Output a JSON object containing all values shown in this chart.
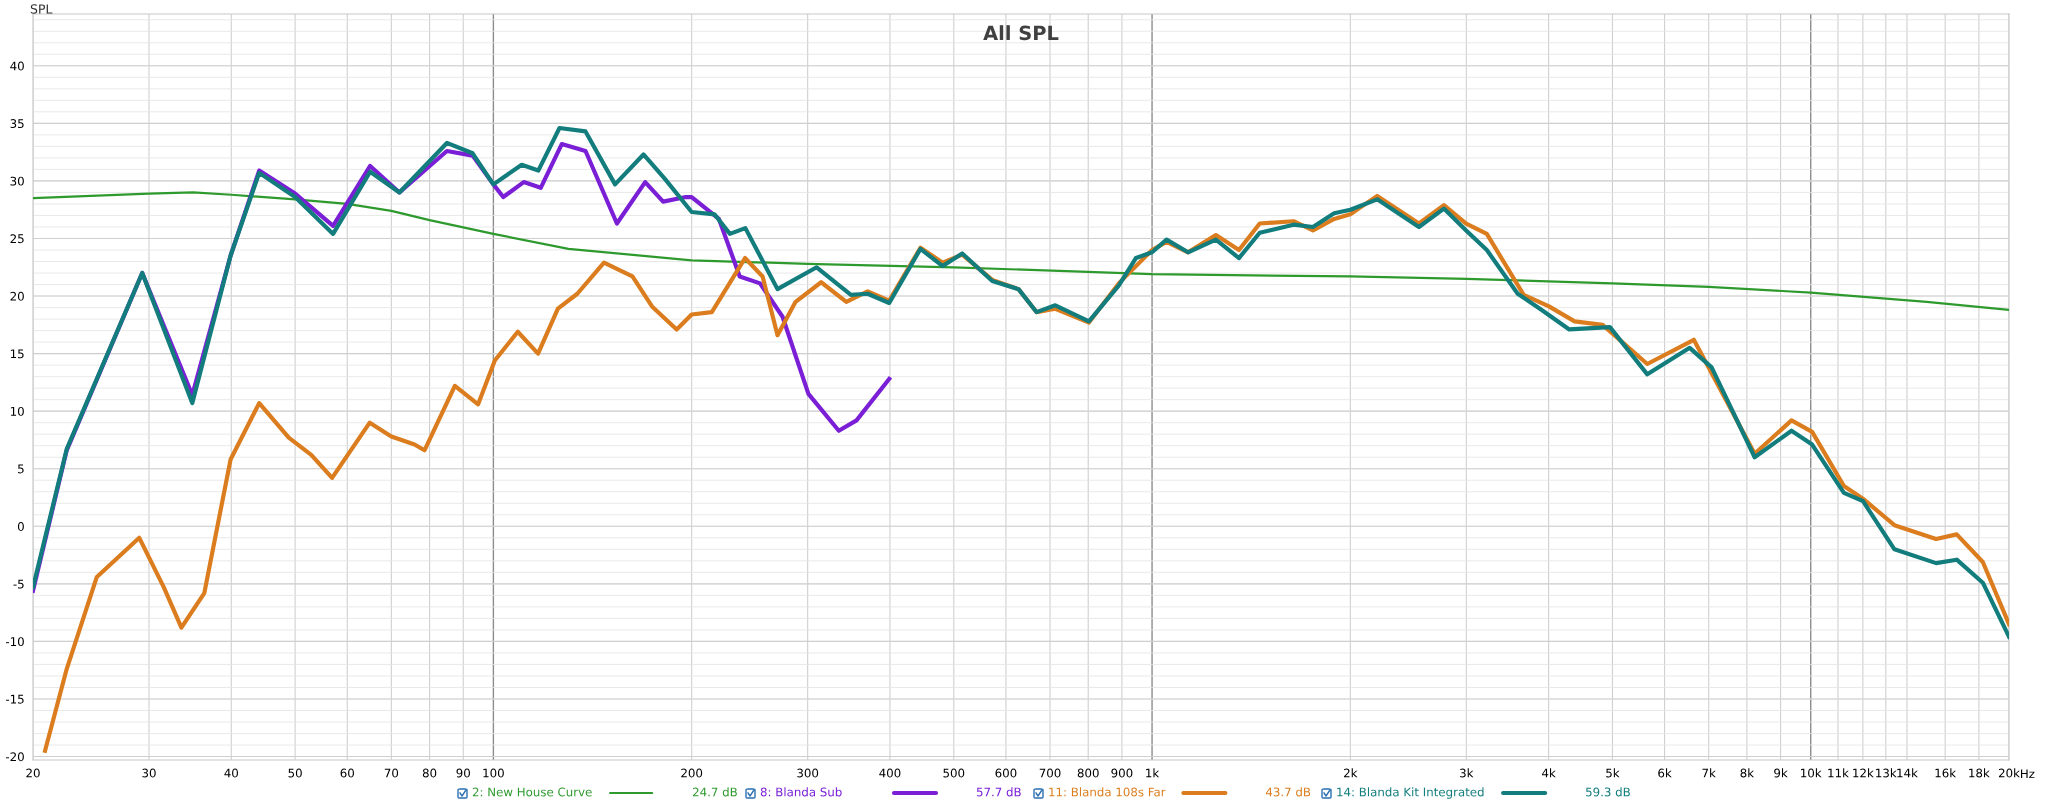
{
  "chart_data": {
    "type": "line",
    "title": "All SPL",
    "ylabel": "SPL",
    "log": "x",
    "grid": true,
    "legend": "bottom",
    "line_style": "solid",
    "marker": "none",
    "xlim": [
      20,
      20000
    ],
    "ylim": [
      -20.3,
      44.5
    ],
    "xticks": [
      20,
      30,
      40,
      50,
      60,
      70,
      80,
      90,
      100,
      200,
      300,
      400,
      500,
      600,
      700,
      800,
      900,
      {
        "value": 1000,
        "label": "1k"
      },
      {
        "value": 2000,
        "label": "2k"
      },
      {
        "value": 3000,
        "label": "3k"
      },
      {
        "value": 4000,
        "label": "4k"
      },
      {
        "value": 5000,
        "label": "5k"
      },
      {
        "value": 6000,
        "label": "6k"
      },
      {
        "value": 7000,
        "label": "7k"
      },
      {
        "value": 8000,
        "label": "8k"
      },
      {
        "value": 9000,
        "label": "9k"
      },
      {
        "value": 10000,
        "label": "10k"
      },
      {
        "value": 11000,
        "label": "11k"
      },
      {
        "value": 12000,
        "label": "12k"
      },
      {
        "value": 13000,
        "label": "13k"
      },
      {
        "value": 14000,
        "label": "14k"
      },
      {
        "value": 16000,
        "label": "16k"
      },
      {
        "value": 18000,
        "label": "18k"
      },
      {
        "value": 20000,
        "label": "20k"
      }
    ],
    "xlabel": "Hz",
    "yticks": [
      -20,
      -15,
      -10,
      -5,
      0,
      5,
      10,
      15,
      20,
      25,
      30,
      35,
      40
    ],
    "annotations": [
      "24.7 dB",
      "57.7 dB",
      "43.7 dB",
      "59.3 dB"
    ],
    "series": [
      {
        "name": "2: New House Curve",
        "color": "#2e9a2e",
        "x": [
          20,
          30,
          35,
          40,
          50,
          60,
          70,
          80,
          100,
          130,
          200,
          300,
          500,
          1000,
          2000,
          3000,
          5000,
          7000,
          10000,
          15000,
          20000
        ],
        "values": [
          28.5,
          28.9,
          29.0,
          28.8,
          28.4,
          28.0,
          27.4,
          26.6,
          25.4,
          24.1,
          23.1,
          22.8,
          22.5,
          21.9,
          21.7,
          21.5,
          21.1,
          20.8,
          20.3,
          19.5,
          18.8
        ]
      },
      {
        "name": "8: Blanda Sub",
        "color": "#7a1fd6",
        "x": [
          20,
          22.5,
          29.3,
          34.9,
          39.9,
          44.1,
          50,
          57.1,
          65,
          72,
          85,
          93,
          100,
          103.5,
          111.2,
          118,
          127,
          138,
          154,
          170,
          181,
          196,
          200,
          220,
          236.6,
          254,
          274.8,
          300.8,
          334.5,
          355.9,
          399
        ],
        "values": [
          -5.6,
          6.6,
          22.0,
          11.4,
          23.5,
          30.9,
          28.9,
          26.1,
          31.3,
          29.0,
          32.6,
          32.2,
          29.7,
          28.6,
          29.9,
          29.4,
          33.2,
          32.6,
          26.3,
          29.9,
          28.2,
          28.6,
          28.6,
          26.7,
          21.7,
          21.1,
          18.2,
          11.5,
          8.3,
          9.2,
          12.8
        ]
      },
      {
        "name": "11: Blanda 108s Far",
        "color": "#db7d1e",
        "x": [
          20.86,
          22.5,
          25.0,
          29.0,
          31.6,
          33.6,
          36.4,
          39.9,
          44.1,
          48.9,
          52.9,
          56.9,
          64.9,
          70.0,
          75.9,
          78.6,
          87.4,
          94.8,
          100.5,
          108.9,
          116.9,
          125.3,
          134.1,
          147.2,
          162.6,
          174.1,
          189.8,
          200,
          214.6,
          241,
          256.3,
          270,
          287.6,
          314.5,
          343.4,
          370,
          399,
          445,
          481,
          515,
          572,
          627,
          668,
          713,
          802,
          890,
          1000,
          1052,
          1134,
          1250,
          1355,
          1457,
          1640,
          1755,
          1890,
          2000,
          2197,
          2542,
          2774,
          2998,
          3223,
          3666,
          4005,
          4380,
          4830,
          5648,
          6645,
          8220,
          9350,
          10050,
          11230,
          12000,
          13400,
          15500,
          16660,
          18250,
          20000
        ],
        "values": [
          -19.5,
          -12.4,
          -4.4,
          -1.0,
          -5.3,
          -8.8,
          -5.8,
          5.8,
          10.7,
          7.7,
          6.2,
          4.2,
          9.0,
          7.8,
          7.1,
          6.6,
          12.2,
          10.6,
          14.4,
          16.9,
          15.0,
          18.9,
          20.2,
          22.9,
          21.7,
          19.1,
          17.1,
          18.4,
          18.6,
          23.3,
          21.7,
          16.6,
          19.5,
          21.2,
          19.5,
          20.4,
          19.6,
          24.2,
          22.9,
          23.6,
          21.4,
          20.6,
          18.6,
          18.9,
          17.7,
          21.1,
          24.0,
          24.7,
          23.8,
          25.3,
          24.0,
          26.3,
          26.5,
          25.7,
          26.7,
          27.1,
          28.7,
          26.3,
          27.9,
          26.3,
          25.4,
          20.1,
          19.1,
          17.8,
          17.5,
          14.1,
          16.2,
          6.3,
          9.2,
          8.2,
          3.5,
          2.4,
          0.1,
          -1.1,
          -0.7,
          -3.1,
          -8.5
        ]
      },
      {
        "name": "14: Blanda Kit Integrated",
        "color": "#137d7d",
        "x": [
          20,
          22.5,
          29.3,
          34.9,
          39.9,
          44.1,
          50,
          57.1,
          65,
          72,
          85,
          93,
          100,
          110.4,
          117,
          126,
          138,
          153,
          169,
          182,
          200,
          216.6,
          228.6,
          241.3,
          270,
          309.6,
          349,
          370,
          399,
          445,
          481,
          515,
          572,
          627,
          668,
          713,
          802,
          890,
          945,
          1000,
          1052,
          1134,
          1250,
          1355,
          1457,
          1640,
          1755,
          1890,
          2000,
          2197,
          2542,
          2774,
          2998,
          3223,
          3590,
          3880,
          4300,
          4956,
          5648,
          6550,
          7072,
          8220,
          9350,
          10050,
          11230,
          12000,
          13400,
          15500,
          16660,
          18250,
          20000
        ],
        "values": [
          -5.3,
          6.7,
          22.0,
          10.7,
          23.5,
          30.7,
          28.6,
          25.4,
          30.8,
          29.0,
          33.3,
          32.4,
          29.7,
          31.4,
          30.9,
          34.6,
          34.3,
          29.7,
          32.3,
          30.2,
          27.3,
          27.1,
          25.4,
          25.9,
          20.6,
          22.5,
          20.1,
          20.2,
          19.4,
          24.1,
          22.6,
          23.7,
          21.3,
          20.6,
          18.6,
          19.2,
          17.8,
          20.9,
          23.3,
          23.8,
          24.9,
          23.8,
          24.9,
          23.3,
          25.5,
          26.2,
          26.0,
          27.2,
          27.5,
          28.4,
          26.0,
          27.6,
          25.7,
          24.0,
          20.2,
          18.9,
          17.1,
          17.3,
          13.2,
          15.5,
          13.8,
          6.0,
          8.3,
          7.1,
          2.9,
          2.2,
          -2.0,
          -3.2,
          -2.9,
          -4.9,
          -9.6
        ]
      }
    ]
  }
}
